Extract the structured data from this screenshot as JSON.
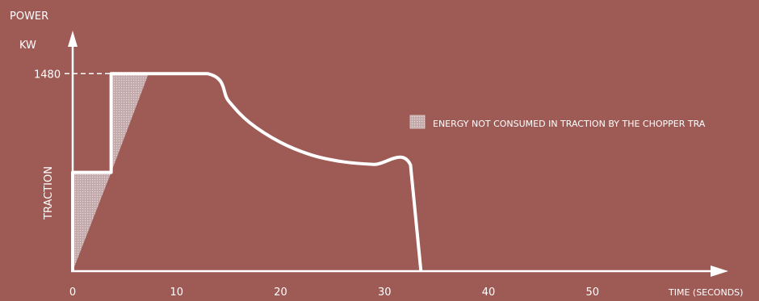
{
  "chart_data": {
    "type": "line",
    "ylabel_top": "POWER",
    "ylabel_unit": "KW",
    "ylabel_side": "TRACTION",
    "xlabel": "TIME (SECONDS)",
    "x_ticks": [
      0,
      10,
      20,
      30,
      40,
      50
    ],
    "xlim": [
      0,
      64
    ],
    "y_ticks": [
      1480
    ],
    "ylim": [
      0,
      1760
    ],
    "series": [
      {
        "x": [
          0,
          0,
          3.7,
          3.7,
          13,
          15,
          17,
          20,
          23,
          26,
          29,
          32.5,
          33.5
        ],
        "y": [
          0,
          740,
          740,
          1480,
          1480,
          1275,
          1115,
          965,
          870,
          820,
          800,
          795,
          0
        ]
      }
    ],
    "shaded_regions": [
      {
        "polygon": [
          [
            0,
            0
          ],
          [
            0,
            740
          ],
          [
            3.7,
            740
          ]
        ]
      },
      {
        "polygon": [
          [
            3.7,
            740
          ],
          [
            3.7,
            1480
          ],
          [
            7.3,
            1480
          ]
        ]
      }
    ],
    "legend": {
      "label": "ENERGY NOT CONSUMED IN TRACTION BY THE CHOPPER TRA",
      "position": "right"
    },
    "colors": {
      "background": "#9e5a55",
      "line": "#ffffff",
      "shade": "#c9b8b9"
    }
  }
}
